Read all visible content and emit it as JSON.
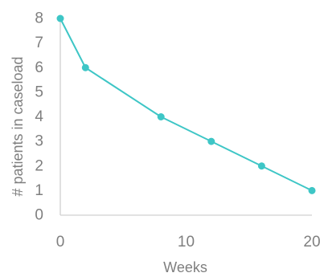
{
  "chart_data": {
    "type": "line",
    "title": "",
    "xlabel": "Weeks",
    "ylabel": "# patients in caseload",
    "xlim": [
      0,
      20
    ],
    "ylim": [
      0,
      8
    ],
    "xticks": [
      0,
      10,
      20
    ],
    "yticks": [
      0,
      1,
      2,
      3,
      4,
      5,
      6,
      7,
      8
    ],
    "grid": false,
    "legend": "none",
    "series": [
      {
        "color": "#3ec6c6",
        "x": [
          0,
          2,
          8,
          12,
          16,
          20
        ],
        "y": [
          8,
          6,
          4,
          3,
          2,
          1
        ]
      }
    ]
  }
}
